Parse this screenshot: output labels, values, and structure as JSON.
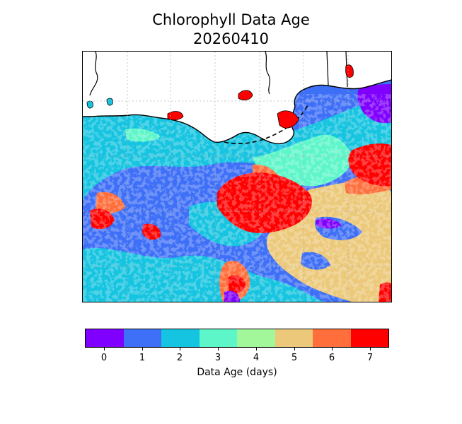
{
  "title": {
    "line1": "Chlorophyll Data Age",
    "line2": "20260410"
  },
  "colorbar": {
    "label": "Data Age (days)",
    "categories": [
      {
        "value": 0,
        "label": "0",
        "color": "#7f00ff"
      },
      {
        "value": 1,
        "label": "1",
        "color": "#3e6ff7"
      },
      {
        "value": 2,
        "label": "2",
        "color": "#15c4e0"
      },
      {
        "value": 3,
        "label": "3",
        "color": "#5cf6c8"
      },
      {
        "value": 4,
        "label": "4",
        "color": "#a2f79a"
      },
      {
        "value": 5,
        "label": "5",
        "color": "#ecc97a"
      },
      {
        "value": 6,
        "label": "6",
        "color": "#ff6e3b"
      },
      {
        "value": 7,
        "label": "7",
        "color": "#ff0000"
      }
    ]
  },
  "map": {
    "land_color": "#ffffff",
    "coastline_color": "#000000",
    "gridlines": "dotted",
    "region": "northern Gulf of Mexico / Louisiana coast"
  }
}
